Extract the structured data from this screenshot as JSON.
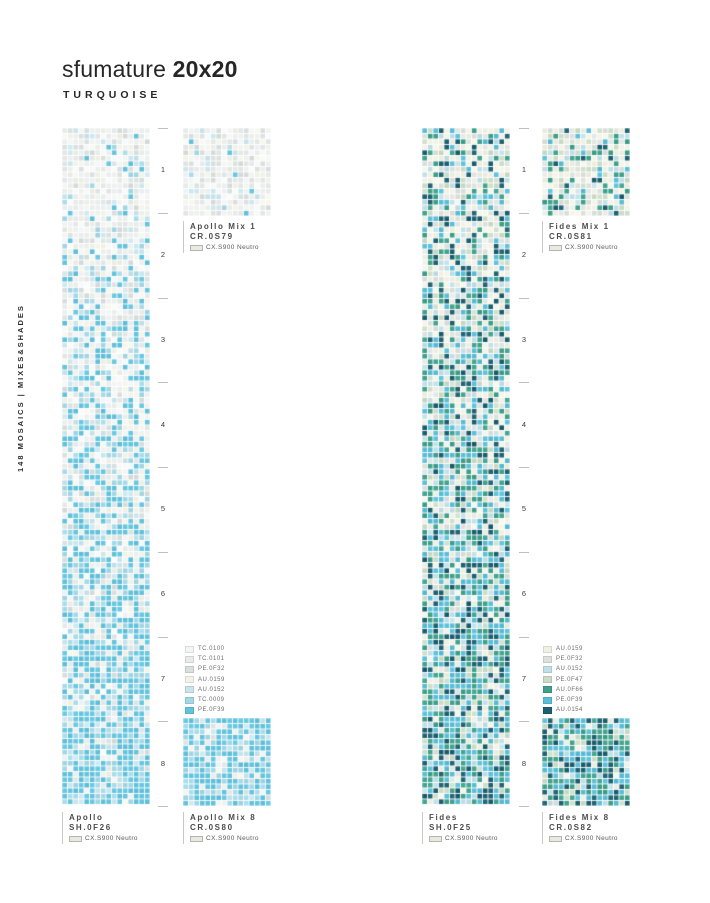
{
  "page": {
    "title_regular": "sfumature ",
    "title_bold": "20x20",
    "subtitle": "TURQUOISE",
    "sidebar": "148 MOSAICS | MIXES&SHADES"
  },
  "scale": {
    "numbers": [
      "1",
      "2",
      "3",
      "4",
      "5",
      "6",
      "7",
      "8"
    ]
  },
  "labels": {
    "apollo_strip": {
      "name": "Apollo",
      "code": "SH.0F26",
      "base": "CX.S900 Neutro"
    },
    "apollo_mix1": {
      "name": "Apollo Mix 1",
      "code": "CR.0S79",
      "base": "CX.S900 Neutro"
    },
    "apollo_mix8": {
      "name": "Apollo Mix 8",
      "code": "CR.0S80",
      "base": "CX.S900 Neutro"
    },
    "fides_strip": {
      "name": "Fides",
      "code": "SH.0F25",
      "base": "CX.S900 Neutro"
    },
    "fides_mix1": {
      "name": "Fides Mix 1",
      "code": "CR.0S81",
      "base": "CX.S900 Neutro"
    },
    "fides_mix8": {
      "name": "Fides Mix 8",
      "code": "CR.0S82",
      "base": "CX.S900 Neutro"
    }
  },
  "grout_color": "#e9e9e3",
  "legends": {
    "apollo": [
      {
        "code": "TC.0100",
        "color": "#f3f5f4"
      },
      {
        "code": "TC.0101",
        "color": "#e7ebea"
      },
      {
        "code": "PE.0F32",
        "color": "#d9dfde"
      },
      {
        "code": "AU.0159",
        "color": "#f1f2e8"
      },
      {
        "code": "AU.0152",
        "color": "#c8e4ec"
      },
      {
        "code": "TC.0009",
        "color": "#a4d8e6"
      },
      {
        "code": "PE.0F39",
        "color": "#63c3dd"
      }
    ],
    "fides": [
      {
        "code": "AU.0159",
        "color": "#f0f1e4"
      },
      {
        "code": "PE.0F32",
        "color": "#dce1de"
      },
      {
        "code": "AU.0152",
        "color": "#c0dfe8"
      },
      {
        "code": "PE.0F47",
        "color": "#cadcc6"
      },
      {
        "code": "AU.0F66",
        "color": "#3fa18b"
      },
      {
        "code": "PE.0F39",
        "color": "#5bbed8"
      },
      {
        "code": "AU.0154",
        "color": "#1c5f70"
      }
    ]
  },
  "mosaics": {
    "apollo_strip": {
      "palette": "apollo",
      "cols": 16,
      "rows": 123,
      "seed": 11,
      "top_weights": [
        0.31,
        0.21,
        0.14,
        0.17,
        0.09,
        0.05,
        0.03
      ],
      "bottom_weights": [
        0.03,
        0.02,
        0.02,
        0.05,
        0.08,
        0.26,
        0.54
      ]
    },
    "apollo_mix1": {
      "palette": "apollo",
      "cols": 16,
      "rows": 16,
      "seed": 21,
      "top_weights": [
        0.33,
        0.21,
        0.14,
        0.17,
        0.08,
        0.04,
        0.03
      ],
      "bottom_weights": [
        0.33,
        0.21,
        0.14,
        0.17,
        0.08,
        0.04,
        0.03
      ]
    },
    "apollo_mix8": {
      "palette": "apollo",
      "cols": 16,
      "rows": 16,
      "seed": 31,
      "top_weights": [
        0.04,
        0.02,
        0.02,
        0.05,
        0.09,
        0.25,
        0.53
      ],
      "bottom_weights": [
        0.04,
        0.02,
        0.02,
        0.05,
        0.09,
        0.25,
        0.53
      ]
    },
    "fides_strip": {
      "palette": "fides",
      "cols": 16,
      "rows": 123,
      "seed": 41,
      "top_weights": [
        0.33,
        0.17,
        0.07,
        0.11,
        0.15,
        0.07,
        0.1
      ],
      "bottom_weights": [
        0.05,
        0.02,
        0.1,
        0.07,
        0.27,
        0.27,
        0.22
      ]
    },
    "fides_mix1": {
      "palette": "fides",
      "cols": 16,
      "rows": 16,
      "seed": 51,
      "top_weights": [
        0.31,
        0.16,
        0.08,
        0.12,
        0.15,
        0.08,
        0.1
      ],
      "bottom_weights": [
        0.31,
        0.16,
        0.08,
        0.12,
        0.15,
        0.08,
        0.1
      ]
    },
    "fides_mix8": {
      "palette": "fides",
      "cols": 16,
      "rows": 16,
      "seed": 61,
      "top_weights": [
        0.05,
        0.02,
        0.1,
        0.07,
        0.27,
        0.27,
        0.22
      ],
      "bottom_weights": [
        0.05,
        0.02,
        0.1,
        0.07,
        0.27,
        0.27,
        0.22
      ]
    }
  }
}
